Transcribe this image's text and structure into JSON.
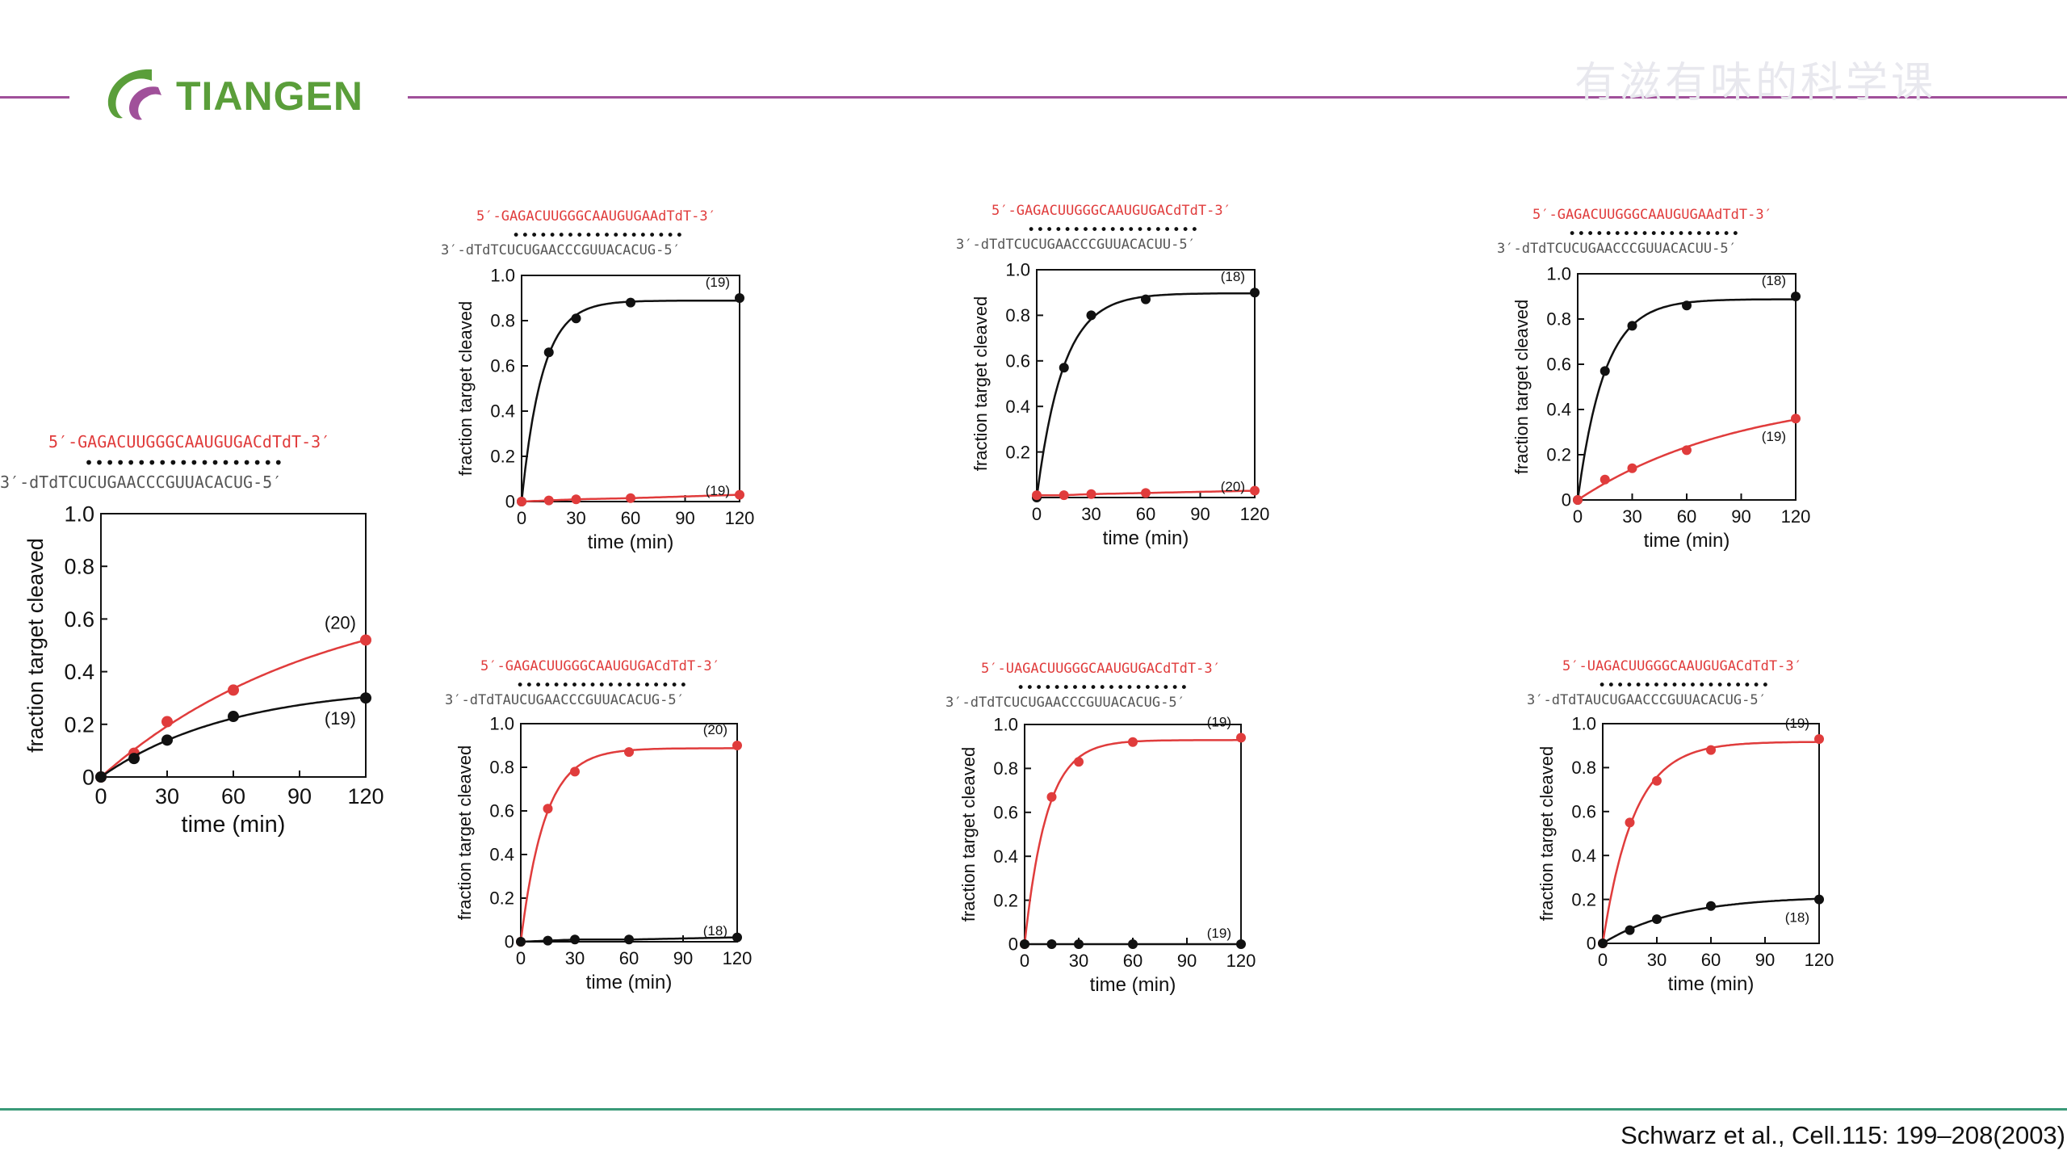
{
  "header": {
    "logo_text": "TIANGEN",
    "watermark": "有滋有味的科学课",
    "colors": {
      "line": "#a0509a",
      "logo_green": "#5a9e3a",
      "logo_purple": "#a0509a"
    }
  },
  "footer": {
    "citation": "Schwarz et al.,  Cell.115: 199–208(2003)",
    "line_color": "#3a9a78"
  },
  "series_colors": {
    "red": "#e03c3c",
    "black": "#111111"
  },
  "chart_data": [
    {
      "type": "line",
      "seq_top": "5′-GAGACUUGGGCAAUGUGACdTdT-3′",
      "seq_bottom": "3′-dTdTCUCUGAACCCGUUACACUG-5′",
      "xlabel": "time (min)",
      "ylabel": "fraction target cleaved",
      "xticks": [
        "0",
        "30",
        "60",
        "90",
        "120"
      ],
      "yticks": [
        "0",
        "0.2",
        "0.4",
        "0.6",
        "0.8",
        "1.0"
      ],
      "xlim": [
        0,
        120
      ],
      "ylim": [
        0,
        1.0
      ],
      "series": [
        {
          "color": "red",
          "label": "(20)",
          "x": [
            0,
            15,
            30,
            60,
            120
          ],
          "y": [
            0,
            0.09,
            0.21,
            0.33,
            0.52
          ]
        },
        {
          "color": "black",
          "label": "(19)",
          "x": [
            0,
            15,
            30,
            60,
            120
          ],
          "y": [
            0,
            0.07,
            0.14,
            0.23,
            0.3
          ]
        }
      ]
    },
    {
      "type": "line",
      "seq_top": "5′-GAGACUUGGGCAAUGUGAAdTdT-3′",
      "seq_bottom": "3′-dTdTCUCUGAACCCGUUACACUG-5′",
      "xlabel": "time (min)",
      "ylabel": "fraction target cleaved",
      "xticks": [
        "0",
        "30",
        "60",
        "90",
        "120"
      ],
      "yticks": [
        "0",
        "0.2",
        "0.4",
        "0.6",
        "0.8",
        "1.0"
      ],
      "xlim": [
        0,
        120
      ],
      "ylim": [
        0,
        1.0
      ],
      "series": [
        {
          "color": "black",
          "label": "(19)",
          "x": [
            0,
            15,
            30,
            60,
            120
          ],
          "y": [
            0,
            0.66,
            0.81,
            0.88,
            0.9
          ]
        },
        {
          "color": "red",
          "label": "(19)",
          "x": [
            0,
            15,
            30,
            60,
            120
          ],
          "y": [
            0,
            0.005,
            0.01,
            0.015,
            0.03
          ]
        }
      ]
    },
    {
      "type": "line",
      "seq_top": "5′-GAGACUUGGGCAAUGUGACdTdT-3′",
      "seq_bottom": "3′-dTdTCUCUGAACCCGUUACACUU-5′",
      "xlabel": "time (min)",
      "ylabel": "fraction target cleaved",
      "xticks": [
        "0",
        "30",
        "60",
        "90",
        "120"
      ],
      "yticks": [
        "0.2",
        "0.4",
        "0.6",
        "0.8",
        "1.0"
      ],
      "xlim": [
        0,
        120
      ],
      "ylim": [
        0,
        1.0
      ],
      "series": [
        {
          "color": "black",
          "label": "(18)",
          "x": [
            0,
            15,
            30,
            60,
            120
          ],
          "y": [
            0,
            0.57,
            0.8,
            0.87,
            0.9
          ]
        },
        {
          "color": "red",
          "label": "(20)",
          "x": [
            0,
            15,
            30,
            60,
            120
          ],
          "y": [
            0.01,
            0.01,
            0.015,
            0.02,
            0.03
          ]
        }
      ]
    },
    {
      "type": "line",
      "seq_top": "5′-GAGACUUGGGCAAUGUGAAdTdT-3′",
      "seq_bottom": "3′-dTdTCUCUGAACCCGUUACACUU-5′",
      "xlabel": "time (min)",
      "ylabel": "fraction target cleaved",
      "xticks": [
        "0",
        "30",
        "60",
        "90",
        "120"
      ],
      "yticks": [
        "0",
        "0.2",
        "0.4",
        "0.6",
        "0.8",
        "1.0"
      ],
      "xlim": [
        0,
        120
      ],
      "ylim": [
        0,
        1.0
      ],
      "series": [
        {
          "color": "black",
          "label": "(18)",
          "x": [
            0,
            15,
            30,
            60,
            120
          ],
          "y": [
            0,
            0.57,
            0.77,
            0.86,
            0.9
          ]
        },
        {
          "color": "red",
          "label": "(19)",
          "x": [
            0,
            15,
            30,
            60,
            120
          ],
          "y": [
            0,
            0.09,
            0.14,
            0.22,
            0.36
          ]
        }
      ]
    },
    {
      "type": "line",
      "seq_top": "5′-GAGACUUGGGCAAUGUGACdTdT-3′",
      "seq_bottom": "3′-dTdTAUCUGAACCCGUUACACUG-5′",
      "xlabel": "time (min)",
      "ylabel": "fraction target cleaved",
      "xticks": [
        "0",
        "30",
        "60",
        "90",
        "120"
      ],
      "yticks": [
        "0",
        "0.2",
        "0.4",
        "0.6",
        "0.8",
        "1.0"
      ],
      "xlim": [
        0,
        120
      ],
      "ylim": [
        0,
        1.0
      ],
      "series": [
        {
          "color": "red",
          "label": "(20)",
          "x": [
            0,
            15,
            30,
            60,
            120
          ],
          "y": [
            0,
            0.61,
            0.78,
            0.87,
            0.9
          ]
        },
        {
          "color": "black",
          "label": "(18)",
          "x": [
            0,
            15,
            30,
            60,
            120
          ],
          "y": [
            0,
            0.005,
            0.01,
            0.01,
            0.02
          ]
        }
      ]
    },
    {
      "type": "line",
      "seq_top": "5′-UAGACUUGGGCAAUGUGACdTdT-3′",
      "seq_bottom": "3′-dTdTCUCUGAACCCGUUACACUG-5′",
      "xlabel": "time (min)",
      "ylabel": "fraction target cleaved",
      "xticks": [
        "0",
        "30",
        "60",
        "90",
        "120"
      ],
      "yticks": [
        "0",
        "0.2",
        "0.4",
        "0.6",
        "0.8",
        "1.0"
      ],
      "xlim": [
        0,
        120
      ],
      "ylim": [
        0,
        1.0
      ],
      "series": [
        {
          "color": "red",
          "label": "(19)",
          "x": [
            0,
            15,
            30,
            60,
            120
          ],
          "y": [
            0,
            0.67,
            0.83,
            0.92,
            0.94
          ]
        },
        {
          "color": "black",
          "label": "(19)",
          "x": [
            0,
            15,
            30,
            60,
            120
          ],
          "y": [
            0,
            0,
            0,
            0,
            0
          ]
        }
      ]
    },
    {
      "type": "line",
      "seq_top": "5′-UAGACUUGGGCAAUGUGACdTdT-3′",
      "seq_bottom": "3′-dTdTAUCUGAACCCGUUACACUG-5′",
      "xlabel": "time (min)",
      "ylabel": "fraction target cleaved",
      "xticks": [
        "0",
        "30",
        "60",
        "90",
        "120"
      ],
      "yticks": [
        "0",
        "0.2",
        "0.4",
        "0.6",
        "0.8",
        "1.0"
      ],
      "xlim": [
        0,
        120
      ],
      "ylim": [
        0,
        1.0
      ],
      "series": [
        {
          "color": "red",
          "label": "(19)",
          "x": [
            0,
            15,
            30,
            60,
            120
          ],
          "y": [
            0,
            0.55,
            0.74,
            0.88,
            0.93
          ]
        },
        {
          "color": "black",
          "label": "(18)",
          "x": [
            0,
            15,
            30,
            60,
            120
          ],
          "y": [
            0,
            0.06,
            0.11,
            0.17,
            0.2
          ]
        }
      ]
    }
  ]
}
